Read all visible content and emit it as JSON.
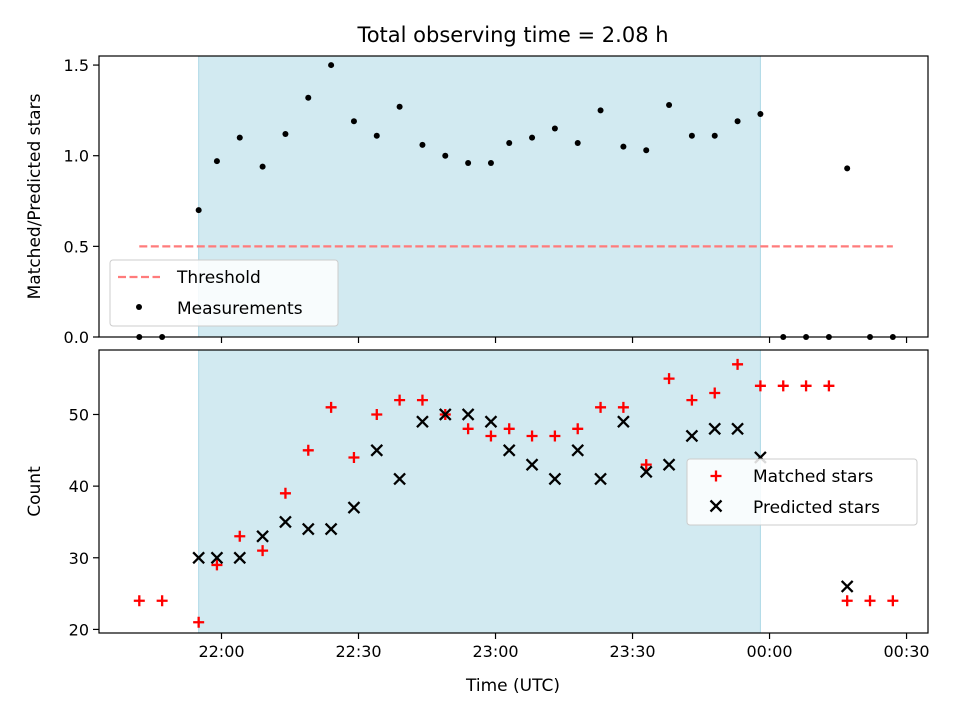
{
  "title": "Total observing time = 2.08 h",
  "xlabel": "Time (UTC)",
  "x_ticks": [
    "22:00",
    "22:30",
    "23:00",
    "23:30",
    "00:00",
    "00:30"
  ],
  "colors": {
    "observing_span": "#add8e6",
    "threshold": "#ff7b7b",
    "measurement": "#000000",
    "matched": "#ff0000",
    "predicted": "#000000"
  },
  "chart_data": [
    {
      "type": "scatter",
      "ylabel": "Matched/Predicted stars",
      "ylim": [
        0,
        1.55
      ],
      "y_ticks": [
        "0.0",
        "0.5",
        "1.0",
        "1.5"
      ],
      "shaded_span": {
        "start": "21:55",
        "end": "23:58"
      },
      "legend_position": "lower-left",
      "threshold": {
        "name": "Threshold",
        "value": 0.5,
        "x_start": "21:42",
        "x_end": "00:27"
      },
      "series": [
        {
          "name": "Measurements",
          "x": [
            "21:42",
            "21:47",
            "21:55",
            "21:59",
            "22:04",
            "22:09",
            "22:14",
            "22:19",
            "22:24",
            "22:29",
            "22:34",
            "22:39",
            "22:44",
            "22:49",
            "22:54",
            "22:59",
            "23:03",
            "23:08",
            "23:13",
            "23:18",
            "23:23",
            "23:28",
            "23:33",
            "23:38",
            "23:43",
            "23:48",
            "23:53",
            "23:58",
            "00:03",
            "00:08",
            "00:13",
            "00:17",
            "00:22",
            "00:27"
          ],
          "y": [
            0,
            0,
            0.7,
            0.97,
            1.1,
            0.94,
            1.12,
            1.32,
            1.5,
            1.19,
            1.11,
            1.27,
            1.06,
            1.0,
            0.96,
            0.96,
            1.07,
            1.1,
            1.15,
            1.07,
            1.25,
            1.05,
            1.03,
            1.28,
            1.11,
            1.11,
            1.19,
            1.23,
            0,
            0,
            0,
            0.93,
            0,
            0
          ]
        }
      ]
    },
    {
      "type": "scatter",
      "ylabel": "Count",
      "ylim": [
        19.5,
        59
      ],
      "y_ticks": [
        "20",
        "30",
        "40",
        "50"
      ],
      "shaded_span": {
        "start": "21:55",
        "end": "23:58"
      },
      "legend_position": "center-right",
      "series": [
        {
          "name": "Matched stars",
          "x": [
            "21:42",
            "21:47",
            "21:55",
            "21:59",
            "22:04",
            "22:09",
            "22:14",
            "22:19",
            "22:24",
            "22:29",
            "22:34",
            "22:39",
            "22:44",
            "22:49",
            "22:54",
            "22:59",
            "23:03",
            "23:08",
            "23:13",
            "23:18",
            "23:23",
            "23:28",
            "23:33",
            "23:38",
            "23:43",
            "23:48",
            "23:53",
            "23:58",
            "00:03",
            "00:08",
            "00:13",
            "00:17",
            "00:22",
            "00:27"
          ],
          "y": [
            24,
            24,
            21,
            29,
            33,
            31,
            39,
            45,
            51,
            44,
            50,
            52,
            52,
            50,
            48,
            47,
            48,
            47,
            47,
            48,
            51,
            51,
            43,
            55,
            52,
            53,
            57,
            54,
            54,
            54,
            54,
            24,
            24,
            24
          ]
        },
        {
          "name": "Predicted stars",
          "x": [
            "21:55",
            "21:59",
            "22:04",
            "22:09",
            "22:14",
            "22:19",
            "22:24",
            "22:29",
            "22:34",
            "22:39",
            "22:44",
            "22:49",
            "22:54",
            "22:59",
            "23:03",
            "23:08",
            "23:13",
            "23:18",
            "23:23",
            "23:28",
            "23:33",
            "23:38",
            "23:43",
            "23:48",
            "23:53",
            "23:58",
            "00:17"
          ],
          "y": [
            30,
            30,
            30,
            33,
            35,
            34,
            34,
            37,
            45,
            41,
            49,
            50,
            50,
            49,
            45,
            43,
            41,
            45,
            41,
            49,
            42,
            43,
            47,
            48,
            48,
            44,
            26
          ]
        }
      ]
    }
  ]
}
